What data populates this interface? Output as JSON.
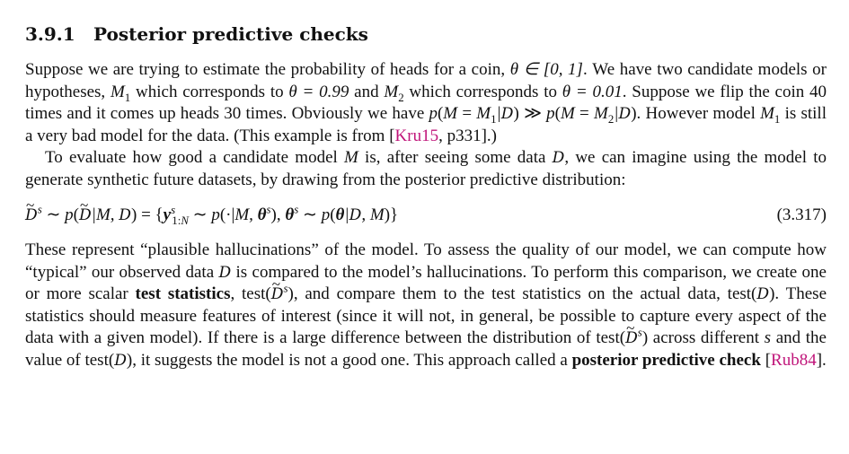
{
  "section": {
    "number": "3.9.1",
    "title": "Posterior predictive checks"
  },
  "p1": {
    "t1": "Suppose we are trying to estimate the probability of heads for a coin, ",
    "m_theta_in": "θ ∈ [0, 1]",
    "t2": ". We have two candidate models or hypotheses, ",
    "t3": " which corresponds to ",
    "m_theta_099": "θ = 0.99",
    "t4": " and ",
    "t5": " which corresponds to ",
    "m_theta_001": "θ = 0.01",
    "t6": ". Suppose we flip the coin 40 times and it comes up heads 30 times. Obviously we have ",
    "t7": ". However model ",
    "t8": " is still a very bad model for the data. (This example is from ",
    "cite_pre": "[",
    "cite_kru": "Kru15",
    "cite_post": ", p331].)"
  },
  "p2": {
    "t1": "To evaluate how good a candidate model ",
    "t2": " is, after seeing some data ",
    "t3": ", we can imagine using the model to generate synthetic future datasets, by drawing from the posterior predictive distribution:"
  },
  "equation": {
    "number": "(3.317)"
  },
  "p3": {
    "t1": "These represent “plausible hallucinations” of the model. To assess the quality of our model, we can compute how “typical” our observed data ",
    "t2": " is compared to the model’s hallucinations. To perform this comparison, we create one or more scalar ",
    "bold1": "test statistics",
    "t3": ", test(",
    "t4": "), and compare them to the test statistics on the actual data, test(",
    "t5": "). These statistics should measure features of interest (since it will not, in general, be possible to capture every aspect of the data with a given model). If there is a large difference between the distribution of test(",
    "t6": ") across different ",
    "t7": " and the value of test(",
    "t8": "), it suggests the model is not a good one. This approach called a ",
    "bold2": "posterior predictive check",
    "t9": " ",
    "cite_pre": "[",
    "cite_rub": "Rub84",
    "cite_post": "]."
  }
}
